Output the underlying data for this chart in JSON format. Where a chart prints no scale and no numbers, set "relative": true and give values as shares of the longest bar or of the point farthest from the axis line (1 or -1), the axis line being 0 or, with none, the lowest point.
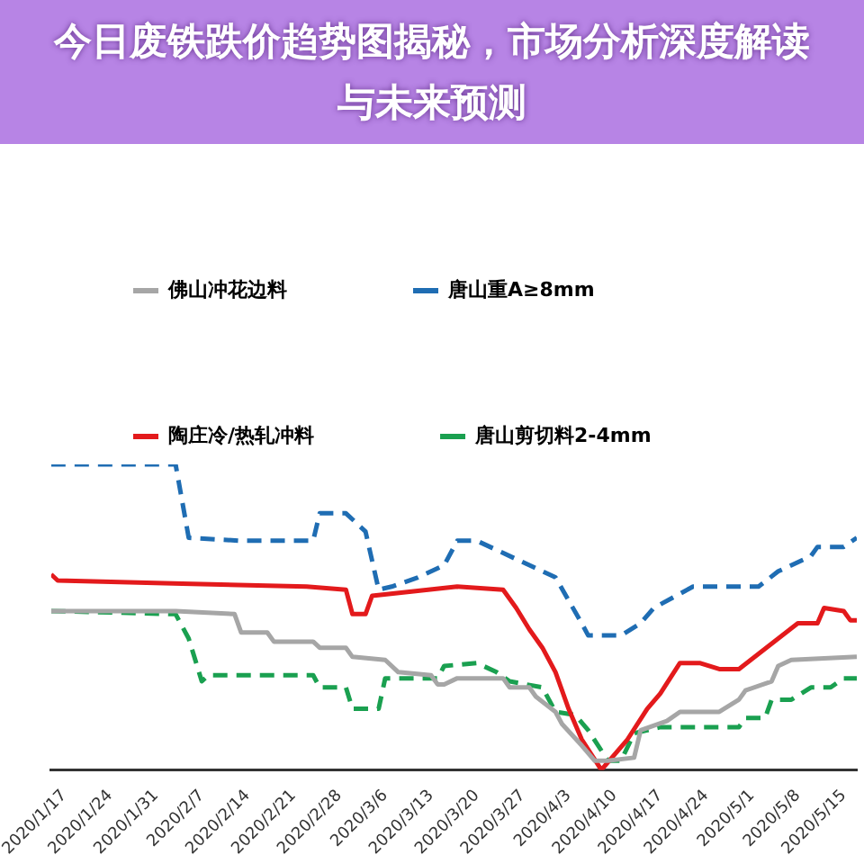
{
  "chart_data": {
    "type": "line",
    "title": "今日废铁跌价趋势图揭秘，市场分析深度解读与未来预测",
    "relative": true,
    "legend": "top left",
    "grid": false,
    "xlim": [
      "2020-01-15",
      "2020-05-17"
    ],
    "xticks": [
      {
        "value": "2020-01-17",
        "label": "2020/1/17"
      },
      {
        "value": "2020-01-24",
        "label": "2020/1/24"
      },
      {
        "value": "2020-01-31",
        "label": "2020/1/31"
      },
      {
        "value": "2020-02-07",
        "label": "2020/2/7"
      },
      {
        "value": "2020-02-14",
        "label": "2020/2/14"
      },
      {
        "value": "2020-02-21",
        "label": "2020/2/21"
      },
      {
        "value": "2020-02-28",
        "label": "2020/2/28"
      },
      {
        "value": "2020-03-06",
        "label": "2020/3/6"
      },
      {
        "value": "2020-03-13",
        "label": "2020/3/13"
      },
      {
        "value": "2020-03-20",
        "label": "2020/3/20"
      },
      {
        "value": "2020-03-27",
        "label": "2020/3/27"
      },
      {
        "value": "2020-04-03",
        "label": "2020/4/3"
      },
      {
        "value": "2020-04-10",
        "label": "2020/4/10"
      },
      {
        "value": "2020-04-17",
        "label": "2020/4/17"
      },
      {
        "value": "2020-04-24",
        "label": "2020/4/24"
      },
      {
        "value": "2020-05-01",
        "label": "2020/5/1"
      },
      {
        "value": "2020-05-08",
        "label": "2020/5/8"
      },
      {
        "value": "2020-05-15",
        "label": "2020/5/15"
      }
    ],
    "series": [
      {
        "name": "佛山冲花边料",
        "color": "#a6a6a6",
        "line_style": "solid",
        "x": [
          "2020-01-15",
          "2020-02-03",
          "2020-02-12",
          "2020-02-13",
          "2020-02-17",
          "2020-02-18",
          "2020-02-24",
          "2020-02-25",
          "2020-02-29",
          "2020-03-01",
          "2020-03-06",
          "2020-03-08",
          "2020-03-13",
          "2020-03-14",
          "2020-03-15",
          "2020-03-17",
          "2020-03-24",
          "2020-03-25",
          "2020-03-28",
          "2020-03-29",
          "2020-04-01",
          "2020-04-02",
          "2020-04-05",
          "2020-04-07",
          "2020-04-09",
          "2020-04-13",
          "2020-04-14",
          "2020-04-18",
          "2020-04-20",
          "2020-04-26",
          "2020-04-29",
          "2020-04-30",
          "2020-05-04",
          "2020-05-05",
          "2020-05-07",
          "2020-05-17"
        ],
        "values": [
          0.52,
          0.52,
          0.51,
          0.45,
          0.45,
          0.42,
          0.42,
          0.4,
          0.4,
          0.37,
          0.36,
          0.32,
          0.31,
          0.28,
          0.28,
          0.3,
          0.3,
          0.27,
          0.27,
          0.24,
          0.19,
          0.15,
          0.08,
          0.03,
          0.03,
          0.04,
          0.13,
          0.16,
          0.19,
          0.19,
          0.23,
          0.26,
          0.29,
          0.34,
          0.36,
          0.37
        ]
      },
      {
        "name": "唐山重A≥8mm",
        "color": "#1f6db3",
        "line_style": "dashed",
        "x": [
          "2020-01-15",
          "2020-02-03",
          "2020-02-05",
          "2020-02-13",
          "2020-02-24",
          "2020-02-25",
          "2020-02-29",
          "2020-03-03",
          "2020-03-05",
          "2020-03-07",
          "2020-03-11",
          "2020-03-15",
          "2020-03-17",
          "2020-03-20",
          "2020-04-01",
          "2020-04-05",
          "2020-04-06",
          "2020-04-11",
          "2020-04-14",
          "2020-04-16",
          "2020-04-22",
          "2020-05-02",
          "2020-05-05",
          "2020-05-10",
          "2020-05-11",
          "2020-05-15",
          "2020-05-17"
        ],
        "values": [
          1.0,
          1.0,
          0.76,
          0.75,
          0.75,
          0.84,
          0.84,
          0.78,
          0.59,
          0.6,
          0.63,
          0.67,
          0.75,
          0.75,
          0.63,
          0.48,
          0.44,
          0.44,
          0.48,
          0.53,
          0.6,
          0.6,
          0.65,
          0.7,
          0.73,
          0.73,
          0.76
        ]
      },
      {
        "name": "陶庄冷/热轧冲料",
        "color": "#e31a1c",
        "line_style": "solid",
        "x": [
          "2020-01-15",
          "2020-01-16",
          "2020-02-04",
          "2020-02-23",
          "2020-02-29",
          "2020-03-01",
          "2020-03-03",
          "2020-03-04",
          "2020-03-17",
          "2020-03-24",
          "2020-03-26",
          "2020-03-28",
          "2020-03-30",
          "2020-04-01",
          "2020-04-03",
          "2020-04-05",
          "2020-04-08",
          "2020-04-12",
          "2020-04-15",
          "2020-04-17",
          "2020-04-20",
          "2020-04-23",
          "2020-04-26",
          "2020-04-29",
          "2020-05-02",
          "2020-05-05",
          "2020-05-08",
          "2020-05-11",
          "2020-05-12",
          "2020-05-15",
          "2020-05-16",
          "2020-05-17"
        ],
        "values": [
          0.64,
          0.62,
          0.61,
          0.6,
          0.59,
          0.51,
          0.51,
          0.57,
          0.6,
          0.59,
          0.53,
          0.46,
          0.4,
          0.32,
          0.2,
          0.1,
          0.0,
          0.1,
          0.2,
          0.25,
          0.35,
          0.35,
          0.33,
          0.33,
          0.38,
          0.43,
          0.48,
          0.48,
          0.53,
          0.52,
          0.49,
          0.49
        ]
      },
      {
        "name": "唐山剪切料2-4mm",
        "color": "#1aa050",
        "line_style": "dashed",
        "x": [
          "2020-01-15",
          "2020-02-03",
          "2020-02-05",
          "2020-02-07",
          "2020-02-08",
          "2020-02-24",
          "2020-02-25",
          "2020-02-29",
          "2020-03-01",
          "2020-03-05",
          "2020-03-06",
          "2020-03-14",
          "2020-03-15",
          "2020-03-20",
          "2020-03-23",
          "2020-03-25",
          "2020-03-30",
          "2020-04-01",
          "2020-04-04",
          "2020-04-06",
          "2020-04-09",
          "2020-04-11",
          "2020-04-13",
          "2020-04-17",
          "2020-04-29",
          "2020-04-30",
          "2020-05-03",
          "2020-05-04",
          "2020-05-07",
          "2020-05-10",
          "2020-05-13",
          "2020-05-15",
          "2020-05-17"
        ],
        "values": [
          0.52,
          0.51,
          0.43,
          0.29,
          0.31,
          0.31,
          0.27,
          0.27,
          0.2,
          0.2,
          0.3,
          0.3,
          0.34,
          0.35,
          0.32,
          0.29,
          0.27,
          0.19,
          0.18,
          0.13,
          0.03,
          0.03,
          0.12,
          0.14,
          0.14,
          0.17,
          0.17,
          0.23,
          0.23,
          0.27,
          0.27,
          0.3,
          0.3
        ]
      }
    ]
  }
}
